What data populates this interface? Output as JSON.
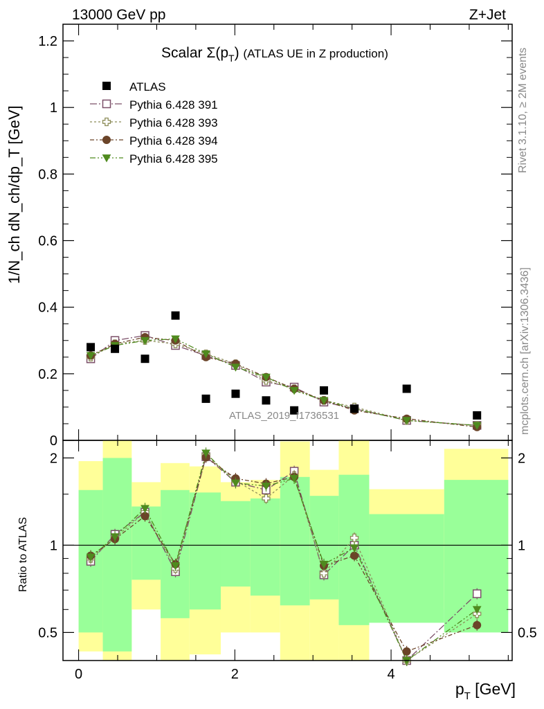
{
  "header": {
    "energy_label": "13000 GeV pp",
    "process_label": "Z+Jet"
  },
  "side_labels": {
    "rivet": "Rivet 3.1.10, ≥ 2M events",
    "mcplots": "mcplots.cern.ch [arXiv:1306.3436]"
  },
  "watermark": "ATLAS_2019_I1736531",
  "chart_data": [
    {
      "panel": "main",
      "type": "scatter",
      "title_main": "Scalar Σ(p",
      "title_sub": "T",
      "title_close": ")",
      "title_rest": "(ATLAS UE in Z production)",
      "ylabel": "1/N_ch dN_ch/dp_T [GeV]",
      "xlim": [
        -0.2,
        5.55
      ],
      "ylim": [
        0,
        1.25
      ],
      "yticks": [
        0,
        0.2,
        0.4,
        0.6,
        0.8,
        1,
        1.2
      ],
      "ytick_labels": [
        "0",
        "0.2",
        "0.4",
        "0.6",
        "0.8",
        "1",
        "1.2"
      ],
      "legend_position": "top-left",
      "x": [
        0.155,
        0.465,
        0.85,
        1.24,
        1.63,
        2.01,
        2.4,
        2.76,
        3.14,
        3.53,
        4.2,
        5.1
      ],
      "data": {
        "name": "ATLAS",
        "values": [
          0.28,
          0.275,
          0.245,
          0.375,
          0.125,
          0.14,
          0.12,
          0.09,
          0.15,
          0.095,
          0.155,
          0.075
        ]
      },
      "series": [
        {
          "name": "Pythia 6.428 391",
          "color": "#7b4f68",
          "marker": "open-square",
          "dash": "10,3,2,3",
          "values": [
            0.245,
            0.3,
            0.315,
            0.285,
            0.255,
            0.225,
            0.175,
            0.16,
            0.115,
            0.095,
            0.06,
            0.045
          ],
          "ratio": [
            0.88,
            1.09,
            1.3,
            0.81,
            2.02,
            1.65,
            1.55,
            1.8,
            0.79,
            1.0,
            0.39,
            0.68
          ]
        },
        {
          "name": "Pythia 6.428 393",
          "color": "#8c8c58",
          "marker": "open-plus",
          "dash": "3,3",
          "values": [
            0.25,
            0.29,
            0.3,
            0.29,
            0.26,
            0.23,
            0.18,
            0.155,
            0.12,
            0.1,
            0.06,
            0.045
          ],
          "ratio": [
            0.9,
            1.06,
            1.3,
            0.83,
            2.05,
            1.67,
            1.45,
            1.74,
            0.8,
            1.06,
            0.37,
            0.58
          ]
        },
        {
          "name": "Pythia 6.428 394",
          "color": "#6b4429",
          "marker": "filled-circle",
          "dash": "6,3,2,3",
          "values": [
            0.255,
            0.29,
            0.31,
            0.3,
            0.25,
            0.23,
            0.19,
            0.155,
            0.12,
            0.09,
            0.065,
            0.04
          ],
          "ratio": [
            0.92,
            1.05,
            1.26,
            0.86,
            2.01,
            1.7,
            1.63,
            1.72,
            0.85,
            0.92,
            0.43,
            0.53
          ]
        },
        {
          "name": "Pythia 6.428 395",
          "color": "#4f8a1e",
          "marker": "filled-triangle-down",
          "dash": "8,3,2,3,2,3",
          "values": [
            0.255,
            0.285,
            0.3,
            0.305,
            0.26,
            0.22,
            0.19,
            0.15,
            0.12,
            0.095,
            0.06,
            0.045
          ],
          "ratio": [
            0.91,
            1.07,
            1.34,
            0.85,
            2.08,
            1.64,
            1.6,
            1.7,
            0.86,
            0.98,
            0.35,
            0.6
          ]
        }
      ]
    },
    {
      "panel": "ratio",
      "type": "scatter",
      "ylabel": "Ratio to ATLAS",
      "xlabel_main": "p",
      "xlabel_sub": "T",
      "xlabel_rest": " [GeV]",
      "xticks": [
        0,
        2,
        4
      ],
      "xtick_labels": [
        "0",
        "2",
        "4"
      ],
      "yticks": [
        0.5,
        1,
        2
      ],
      "ytick_labels": [
        "0.5",
        "1",
        "2"
      ],
      "yscale": "log",
      "ylim": [
        0.4,
        2.3
      ],
      "reference_line": 1,
      "bins": [
        {
          "lo": 0.0,
          "hi": 0.31,
          "green": [
            0.5,
            1.55
          ],
          "yellow": [
            0.43,
            1.95
          ]
        },
        {
          "lo": 0.31,
          "hi": 0.68,
          "green": [
            0.43,
            2.0
          ],
          "yellow": [
            0.38,
            2.3
          ]
        },
        {
          "lo": 0.68,
          "hi": 1.05,
          "green": [
            0.76,
            1.36
          ],
          "yellow": [
            0.6,
            1.65
          ]
        },
        {
          "lo": 1.05,
          "hi": 1.42,
          "green": [
            0.56,
            1.55
          ],
          "yellow": [
            0.4,
            1.92
          ]
        },
        {
          "lo": 1.42,
          "hi": 1.82,
          "green": [
            0.6,
            1.52
          ],
          "yellow": [
            0.42,
            1.87
          ]
        },
        {
          "lo": 1.82,
          "hi": 2.2,
          "green": [
            0.72,
            1.42
          ],
          "yellow": [
            0.5,
            1.65
          ]
        },
        {
          "lo": 2.2,
          "hi": 2.58,
          "green": [
            0.67,
            1.45
          ],
          "yellow": [
            0.5,
            1.68
          ]
        },
        {
          "lo": 2.58,
          "hi": 2.96,
          "green": [
            0.62,
            1.72
          ],
          "yellow": [
            0.4,
            2.28
          ]
        },
        {
          "lo": 2.96,
          "hi": 3.33,
          "green": [
            0.65,
            1.48
          ],
          "yellow": [
            0.4,
            1.82
          ]
        },
        {
          "lo": 3.33,
          "hi": 3.72,
          "green": [
            0.53,
            1.75
          ],
          "yellow": [
            0.4,
            2.3
          ]
        },
        {
          "lo": 3.72,
          "hi": 4.68,
          "green": [
            0.54,
            1.28
          ],
          "yellow": [
            0.8,
            1.56
          ]
        },
        {
          "lo": 4.68,
          "hi": 5.5,
          "green": [
            0.5,
            1.68
          ],
          "yellow": [
            0.6,
            2.15
          ]
        }
      ]
    }
  ]
}
